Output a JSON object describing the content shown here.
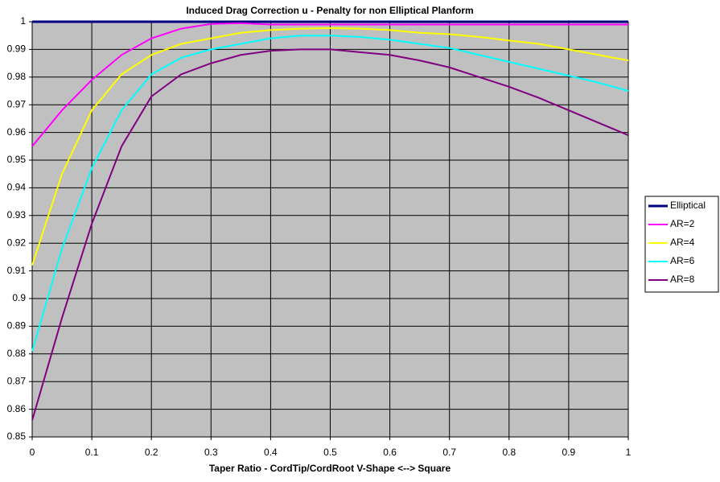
{
  "chart_data": {
    "type": "line",
    "title": "Induced Drag Correction u - Penalty for non Elliptical Planform",
    "x_label": "Taper Ratio - CordTip/CordRoot      V-Shape <--> Square",
    "x": [
      0,
      0.05,
      0.1,
      0.15,
      0.2,
      0.25,
      0.3,
      0.35,
      0.4,
      0.45,
      0.5,
      0.55,
      0.6,
      0.65,
      0.7,
      0.75,
      0.8,
      0.85,
      0.9,
      0.95,
      1
    ],
    "series": [
      {
        "name": "Elliptical",
        "color": "#000080",
        "values": [
          1,
          1,
          1,
          1,
          1,
          1,
          1,
          1,
          1,
          1,
          1,
          1,
          1,
          1,
          1,
          1,
          1,
          1,
          1,
          1,
          1
        ]
      },
      {
        "name": "AR=2",
        "color": "#ff00ff",
        "values": [
          0.955,
          0.968,
          0.979,
          0.988,
          0.994,
          0.9975,
          0.9992,
          0.9995,
          0.999,
          0.999,
          0.999,
          0.999,
          0.999,
          0.999,
          0.999,
          0.999,
          0.999,
          0.999,
          0.999,
          0.999,
          0.999
        ]
      },
      {
        "name": "AR=4",
        "color": "#ffff00",
        "values": [
          0.912,
          0.945,
          0.968,
          0.981,
          0.988,
          0.992,
          0.994,
          0.996,
          0.997,
          0.9975,
          0.9977,
          0.9975,
          0.997,
          0.996,
          0.9955,
          0.9945,
          0.9932,
          0.992,
          0.99,
          0.988,
          0.986
        ]
      },
      {
        "name": "AR=6",
        "color": "#00ffff",
        "values": [
          0.881,
          0.918,
          0.947,
          0.968,
          0.981,
          0.987,
          0.99,
          0.992,
          0.994,
          0.995,
          0.995,
          0.9945,
          0.9935,
          0.992,
          0.9905,
          0.988,
          0.9855,
          0.983,
          0.9805,
          0.978,
          0.975
        ]
      },
      {
        "name": "AR=8",
        "color": "#800080",
        "values": [
          0.856,
          0.893,
          0.927,
          0.955,
          0.973,
          0.981,
          0.985,
          0.988,
          0.9895,
          0.99,
          0.99,
          0.989,
          0.988,
          0.986,
          0.9835,
          0.98,
          0.9765,
          0.9725,
          0.968,
          0.9635,
          0.959
        ]
      }
    ],
    "xlim": [
      0,
      1
    ],
    "xticks": [
      0,
      0.1,
      0.2,
      0.3,
      0.4,
      0.5,
      0.6,
      0.7,
      0.8,
      0.9,
      1
    ],
    "ylim": [
      0.85,
      1
    ],
    "yticks": [
      0.85,
      0.86,
      0.87,
      0.88,
      0.89,
      0.9,
      0.91,
      0.92,
      0.93,
      0.94,
      0.95,
      0.96,
      0.97,
      0.98,
      0.99,
      1
    ],
    "grid": true,
    "legend": "right",
    "plot_background": "#c0c0c0"
  }
}
